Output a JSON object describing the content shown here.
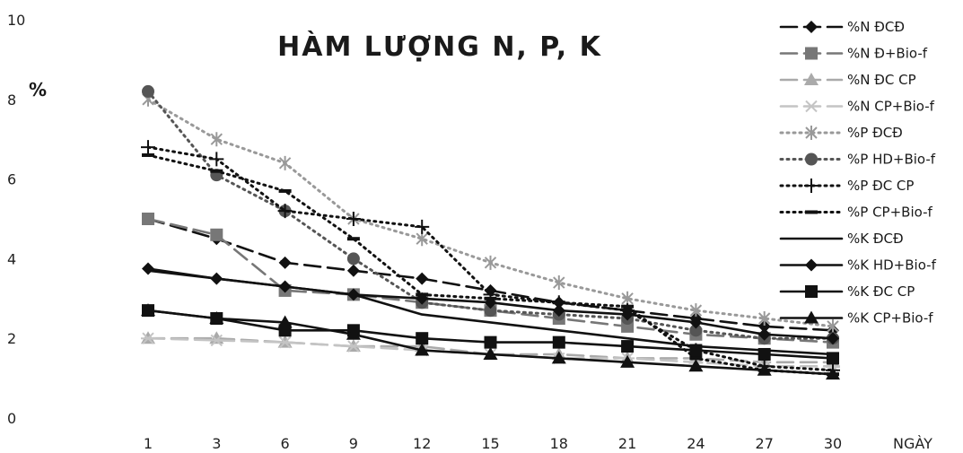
{
  "chart_data": {
    "type": "line",
    "title": "HÀM LƯỢNG N, P, K",
    "ylabel": "%",
    "xlabel": "NGÀY",
    "x": [
      1,
      3,
      6,
      9,
      12,
      15,
      18,
      21,
      24,
      27,
      30
    ],
    "ylim": [
      0,
      10
    ],
    "yticks": [
      0,
      2,
      4,
      6,
      8,
      10
    ],
    "grid": false,
    "legend_position": "right",
    "series": [
      {
        "name": "%N ĐCĐ",
        "marker": "diamond",
        "dash": "long",
        "color": "#111111",
        "values": [
          5.0,
          4.5,
          3.9,
          3.7,
          3.5,
          3.2,
          2.9,
          2.7,
          2.5,
          2.3,
          2.2
        ]
      },
      {
        "name": "%N Đ+Bio-f",
        "marker": "square",
        "dash": "long",
        "color": "#777777",
        "values": [
          5.0,
          4.6,
          3.2,
          3.1,
          2.9,
          2.7,
          2.5,
          2.3,
          2.1,
          2.0,
          1.9
        ]
      },
      {
        "name": "%N ĐC CP",
        "marker": "triangle",
        "dash": "long",
        "color": "#aaaaaa",
        "values": [
          2.0,
          2.0,
          1.9,
          1.8,
          1.8,
          1.6,
          1.6,
          1.5,
          1.5,
          1.4,
          1.4
        ]
      },
      {
        "name": "%N CP+Bio-f",
        "marker": "star",
        "dash": "long",
        "color": "#c4c4c4",
        "values": [
          2.0,
          1.95,
          1.9,
          1.8,
          1.7,
          1.6,
          1.5,
          1.5,
          1.4,
          1.3,
          1.3
        ]
      },
      {
        "name": "%P ĐCĐ",
        "marker": "asterisk",
        "dash": "dotted",
        "color": "#999999",
        "values": [
          8.0,
          7.0,
          6.4,
          5.0,
          4.5,
          3.9,
          3.4,
          3.0,
          2.7,
          2.5,
          2.3
        ]
      },
      {
        "name": "%P HD+Bio-f",
        "marker": "circle",
        "dash": "dotted",
        "color": "#555555",
        "values": [
          8.2,
          6.1,
          5.2,
          4.0,
          2.9,
          2.7,
          2.6,
          2.5,
          2.2,
          2.0,
          2.0
        ]
      },
      {
        "name": "%P ĐC CP",
        "marker": "plus",
        "dash": "dotted",
        "color": "#111111",
        "values": [
          6.8,
          6.5,
          5.2,
          5.0,
          4.8,
          3.1,
          2.9,
          2.7,
          1.7,
          1.3,
          1.2
        ]
      },
      {
        "name": "%P CP+Bio-f",
        "marker": "dash",
        "dash": "dotted",
        "color": "#111111",
        "values": [
          6.6,
          6.2,
          5.7,
          4.5,
          3.1,
          3.0,
          2.9,
          2.8,
          1.5,
          1.2,
          1.1
        ]
      },
      {
        "name": "%K ĐCĐ",
        "marker": "none",
        "dash": "solid",
        "color": "#111111",
        "values": [
          3.7,
          3.5,
          3.3,
          3.1,
          2.6,
          2.4,
          2.2,
          2.0,
          1.8,
          1.7,
          1.6
        ]
      },
      {
        "name": "%K HD+Bio-f",
        "marker": "diamond",
        "dash": "solid",
        "color": "#111111",
        "values": [
          3.75,
          3.5,
          3.3,
          3.1,
          3.0,
          2.9,
          2.7,
          2.6,
          2.4,
          2.1,
          2.0
        ]
      },
      {
        "name": "%K ĐC CP",
        "marker": "square",
        "dash": "solid",
        "color": "#111111",
        "values": [
          2.7,
          2.5,
          2.2,
          2.2,
          2.0,
          1.9,
          1.9,
          1.8,
          1.7,
          1.6,
          1.5
        ]
      },
      {
        "name": "%K CP+Bio-f",
        "marker": "triangle",
        "dash": "solid",
        "color": "#111111",
        "values": [
          2.7,
          2.5,
          2.4,
          2.1,
          1.7,
          1.6,
          1.5,
          1.4,
          1.3,
          1.2,
          1.1
        ]
      }
    ]
  }
}
